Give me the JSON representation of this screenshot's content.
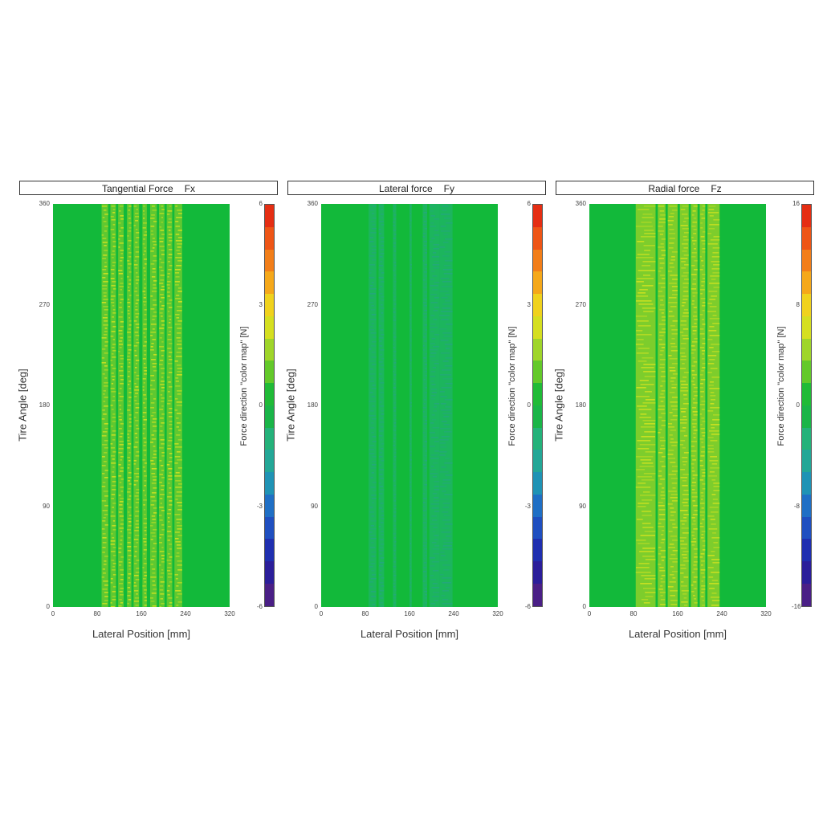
{
  "colors": {
    "field": "#12b93a",
    "stripe": "#c9e021",
    "stripe_alt": "#9fd62a",
    "dark_stripe": "#23a87a",
    "colorbar": [
      "#4a1f86",
      "#2b1e9a",
      "#1f2fb0",
      "#1f4fc0",
      "#1f6fc5",
      "#1f93b5",
      "#23a797",
      "#24b27a",
      "#1ab548",
      "#20bb37",
      "#63c92a",
      "#9fd52a",
      "#d5df20",
      "#f0d21d",
      "#f5a81a",
      "#f27e19",
      "#ee5516",
      "#e52e13"
    ]
  },
  "panels": [
    {
      "id": "fx",
      "title_main": "Tangential Force",
      "title_sym": "Fx",
      "ylabel": "Tire Angle [deg]",
      "xlabel": "Lateral Position [mm]",
      "yticks": [
        "360",
        "270",
        "180",
        "90",
        "0"
      ],
      "xticks": [
        "0",
        "80",
        "160",
        "240",
        "320"
      ],
      "cbar_label": "Force direction \"color map\" [N]",
      "cbar_ticks": [
        "6",
        "3",
        "0",
        "-3",
        "-6"
      ]
    },
    {
      "id": "fy",
      "title_main": "Lateral force",
      "title_sym": "Fy",
      "ylabel": "Tire Angle [deg]",
      "xlabel": "Lateral Position [mm]",
      "yticks": [
        "360",
        "270",
        "180",
        "90",
        "0"
      ],
      "xticks": [
        "0",
        "80",
        "160",
        "240",
        "320"
      ],
      "cbar_label": "Force direction \"color map\" [N]",
      "cbar_ticks": [
        "6",
        "3",
        "0",
        "-3",
        "-6"
      ]
    },
    {
      "id": "fz",
      "title_main": "Radial force",
      "title_sym": "Fz",
      "ylabel": "Tire Angle [deg]",
      "xlabel": "Lateral Position [mm]",
      "yticks": [
        "360",
        "270",
        "180",
        "90",
        "0"
      ],
      "xticks": [
        "0",
        "80",
        "160",
        "240",
        "320"
      ],
      "cbar_label": "Force direction \"color map\" [N]",
      "cbar_ticks": [
        "16",
        "8",
        "0",
        "-8",
        "-16"
      ]
    }
  ],
  "chart_data": [
    {
      "type": "heatmap",
      "title": "Tangential Force Fx",
      "xlabel": "Lateral Position [mm]",
      "ylabel": "Tire Angle [deg]",
      "xlim": [
        0,
        320
      ],
      "ylim": [
        0,
        360
      ],
      "colorbar": {
        "label": "Force direction \"color map\" [N]",
        "range": [
          -6,
          6
        ]
      },
      "active_bands_mm": [
        [
          88,
          100
        ],
        [
          104,
          114
        ],
        [
          118,
          128
        ],
        [
          134,
          142
        ],
        [
          146,
          156
        ],
        [
          162,
          170
        ],
        [
          176,
          188
        ],
        [
          192,
          202
        ],
        [
          206,
          216
        ],
        [
          220,
          234
        ]
      ],
      "band_value_N": 1.5
    },
    {
      "type": "heatmap",
      "title": "Lateral force Fy",
      "xlabel": "Lateral Position [mm]",
      "ylabel": "Tire Angle [deg]",
      "xlim": [
        0,
        320
      ],
      "ylim": [
        0,
        360
      ],
      "colorbar": {
        "label": "Force direction \"color map\" [N]",
        "range": [
          -6,
          6
        ]
      },
      "active_bands_mm": [
        [
          86,
          100
        ],
        [
          104,
          114
        ],
        [
          130,
          136
        ],
        [
          160,
          164
        ],
        [
          184,
          192
        ],
        [
          196,
          214
        ],
        [
          214,
          238
        ]
      ],
      "band_value_N": -1.0
    },
    {
      "type": "heatmap",
      "title": "Radial force Fz",
      "xlabel": "Lateral Position [mm]",
      "ylabel": "Tire Angle [deg]",
      "xlim": [
        0,
        320
      ],
      "ylim": [
        0,
        360
      ],
      "colorbar": {
        "label": "Force direction \"color map\" [N]",
        "range": [
          -16,
          16
        ]
      },
      "active_bands_mm": [
        [
          84,
          120
        ],
        [
          124,
          138
        ],
        [
          142,
          160
        ],
        [
          164,
          180
        ],
        [
          184,
          196
        ],
        [
          200,
          210
        ],
        [
          214,
          236
        ]
      ],
      "band_value_N": 6
    }
  ]
}
